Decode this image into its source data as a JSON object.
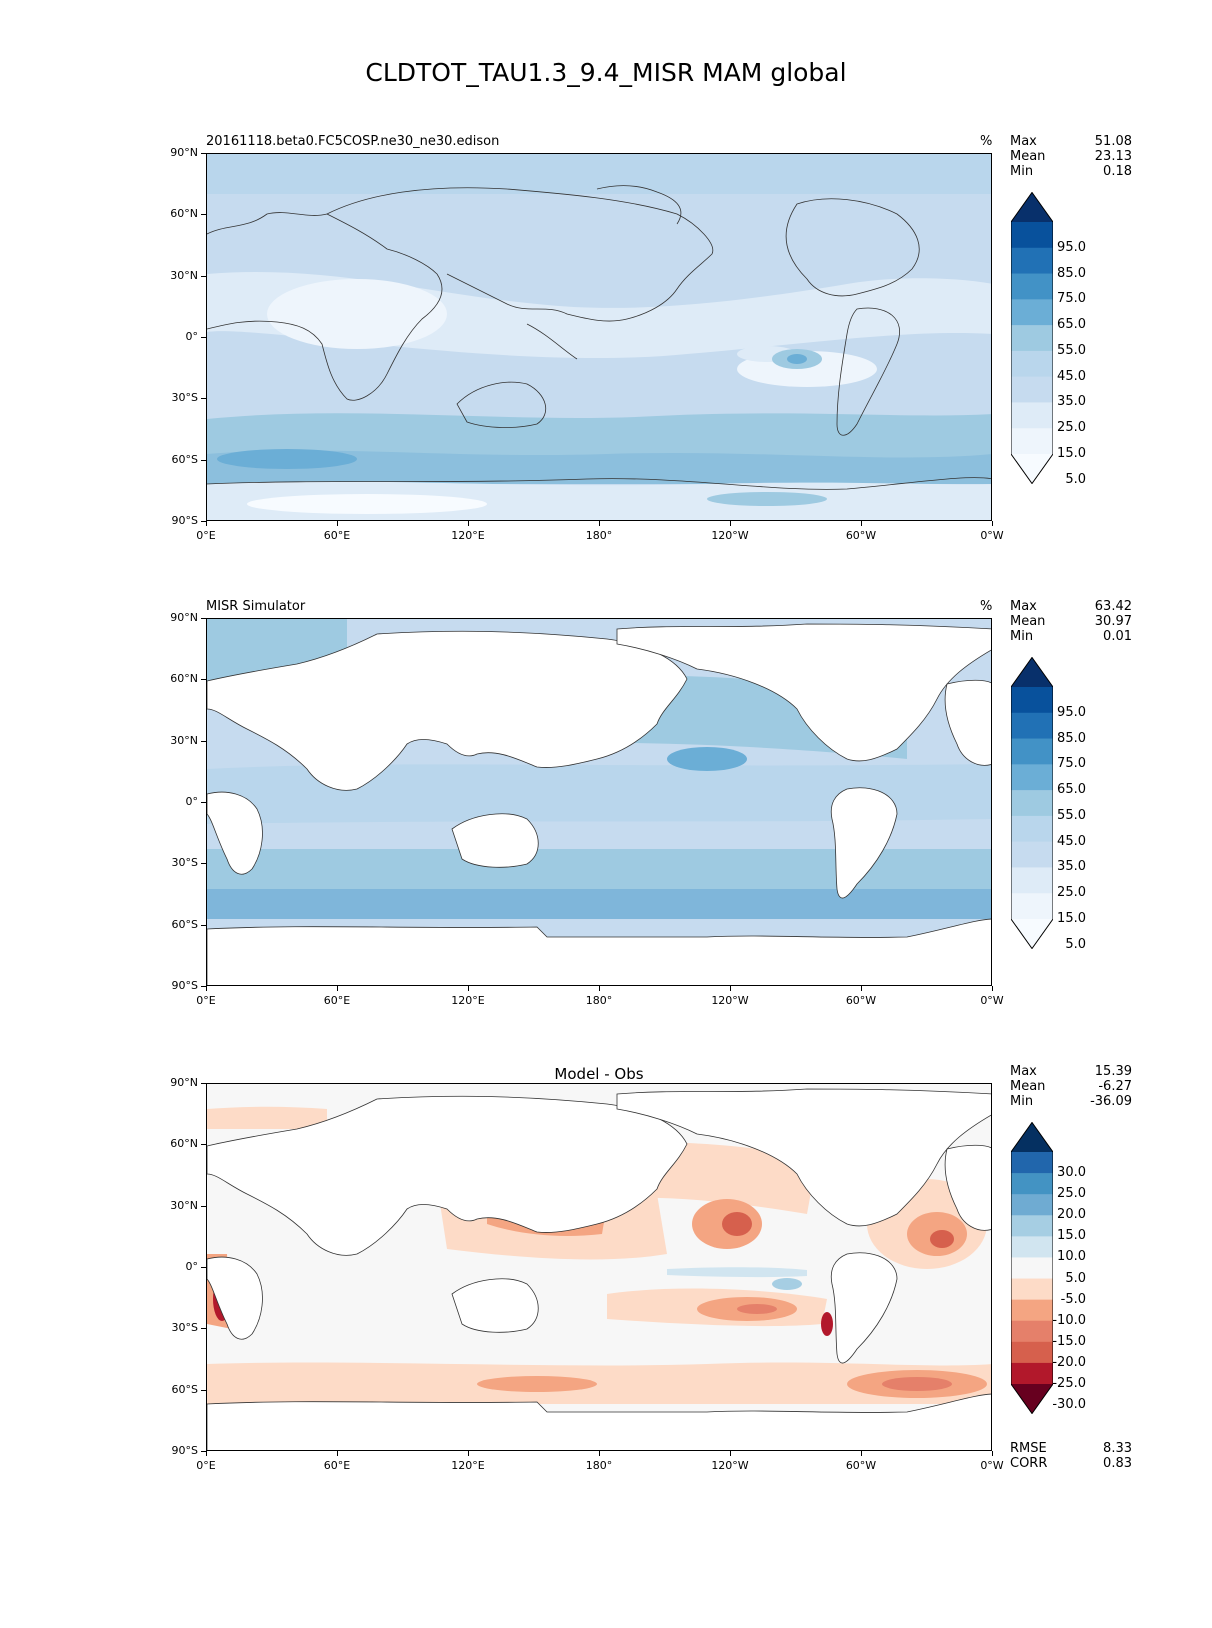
{
  "title": "CLDTOT_TAU1.3_9.4_MISR MAM global",
  "ylabels": [
    "90°N",
    "60°N",
    "30°N",
    "0°",
    "30°S",
    "60°S",
    "90°S"
  ],
  "xlabels": [
    "0°E",
    "60°E",
    "120°E",
    "180°",
    "120°W",
    "60°W",
    "0°W"
  ],
  "panels": [
    {
      "title": "20161118.beta0.FC5COSP.ne30_ne30.edison",
      "unit": "%",
      "stats": {
        "max_label": "Max",
        "max": "51.08",
        "mean_label": "Mean",
        "mean": "23.13",
        "min_label": "Min",
        "min": "0.18"
      },
      "colorbar": {
        "labels": [
          "95.0",
          "85.0",
          "75.0",
          "65.0",
          "55.0",
          "45.0",
          "35.0",
          "25.0",
          "15.0",
          "5.0"
        ],
        "colors": [
          "#08306b",
          "#08519c",
          "#2171b5",
          "#4292c6",
          "#6baed6",
          "#9ecae1",
          "#b9d6ec",
          "#c6dbef",
          "#deebf7",
          "#eef5fc",
          "#f7fbff"
        ]
      }
    },
    {
      "title": "MISR Simulator",
      "unit": "%",
      "stats": {
        "max_label": "Max",
        "max": "63.42",
        "mean_label": "Mean",
        "mean": "30.97",
        "min_label": "Min",
        "min": "0.01"
      },
      "colorbar": {
        "labels": [
          "95.0",
          "85.0",
          "75.0",
          "65.0",
          "55.0",
          "45.0",
          "35.0",
          "25.0",
          "15.0",
          "5.0"
        ],
        "colors": [
          "#08306b",
          "#08519c",
          "#2171b5",
          "#4292c6",
          "#6baed6",
          "#9ecae1",
          "#b9d6ec",
          "#c6dbef",
          "#deebf7",
          "#eef5fc",
          "#f7fbff"
        ]
      }
    },
    {
      "title": "Model - Obs",
      "stats": {
        "max_label": "Max",
        "max": "15.39",
        "mean_label": "Mean",
        "mean": "-6.27",
        "min_label": "Min",
        "min": "-36.09"
      },
      "rmse_label": "RMSE",
      "rmse": "8.33",
      "corr_label": "CORR",
      "corr": "0.83",
      "colorbar": {
        "labels": [
          "30.0",
          "25.0",
          "20.0",
          "15.0",
          "10.0",
          "5.0",
          "-5.0",
          "-10.0",
          "-15.0",
          "-20.0",
          "-25.0",
          "-30.0"
        ],
        "colors": [
          "#053061",
          "#2166ac",
          "#4393c3",
          "#6fabd2",
          "#a6cee3",
          "#d1e5f0",
          "#f7f7f7",
          "#fddbc7",
          "#f4a582",
          "#e5806a",
          "#d6604d",
          "#b2182b",
          "#67001f"
        ]
      }
    }
  ]
}
